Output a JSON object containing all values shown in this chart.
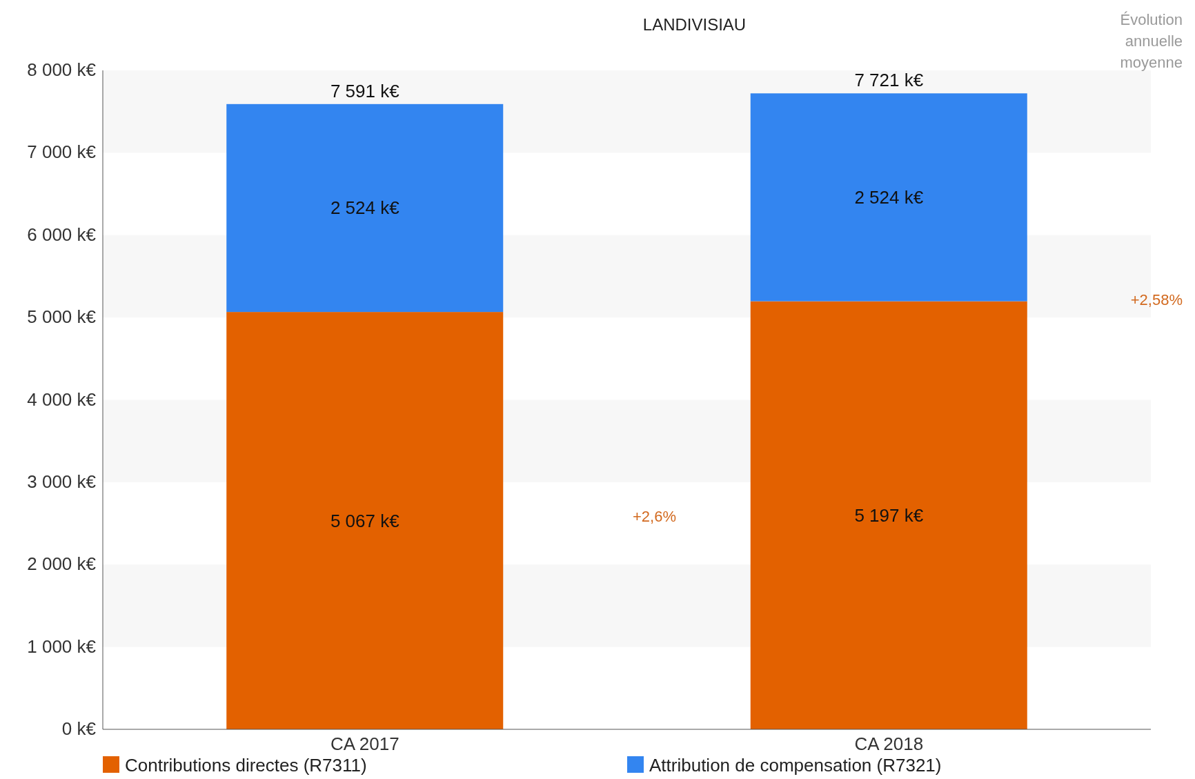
{
  "chart_data": {
    "type": "bar",
    "title": "LANDIVISIAU",
    "stacked": true,
    "categories": [
      "CA 2017",
      "CA 2018"
    ],
    "series": [
      {
        "name": "Contributions directes (R7311)",
        "color": "#e36100",
        "values": [
          5067,
          5197
        ],
        "value_labels": [
          "5 067 k€",
          "5 197 k€"
        ]
      },
      {
        "name": "Attribution de compensation (R7321)",
        "color": "#3385f0",
        "values": [
          2524,
          2524
        ],
        "value_labels": [
          "2 524 k€",
          "2 524 k€"
        ]
      }
    ],
    "totals": [
      "7 591 k€",
      "7 721 k€"
    ],
    "ylim": [
      0,
      8000
    ],
    "yticks": [
      {
        "value": 0,
        "label": "0 k€"
      },
      {
        "value": 1000,
        "label": "1 000 k€"
      },
      {
        "value": 2000,
        "label": "2 000 k€"
      },
      {
        "value": 3000,
        "label": "3 000 k€"
      },
      {
        "value": 4000,
        "label": "4 000 k€"
      },
      {
        "value": 5000,
        "label": "5 000 k€"
      },
      {
        "value": 6000,
        "label": "6 000 k€"
      },
      {
        "value": 7000,
        "label": "7 000 k€"
      },
      {
        "value": 8000,
        "label": "8 000 k€"
      }
    ],
    "legend": "bottom",
    "annotations": [
      "Évolution annuelle moyenne",
      "+2,6%",
      "+2,58%"
    ]
  }
}
